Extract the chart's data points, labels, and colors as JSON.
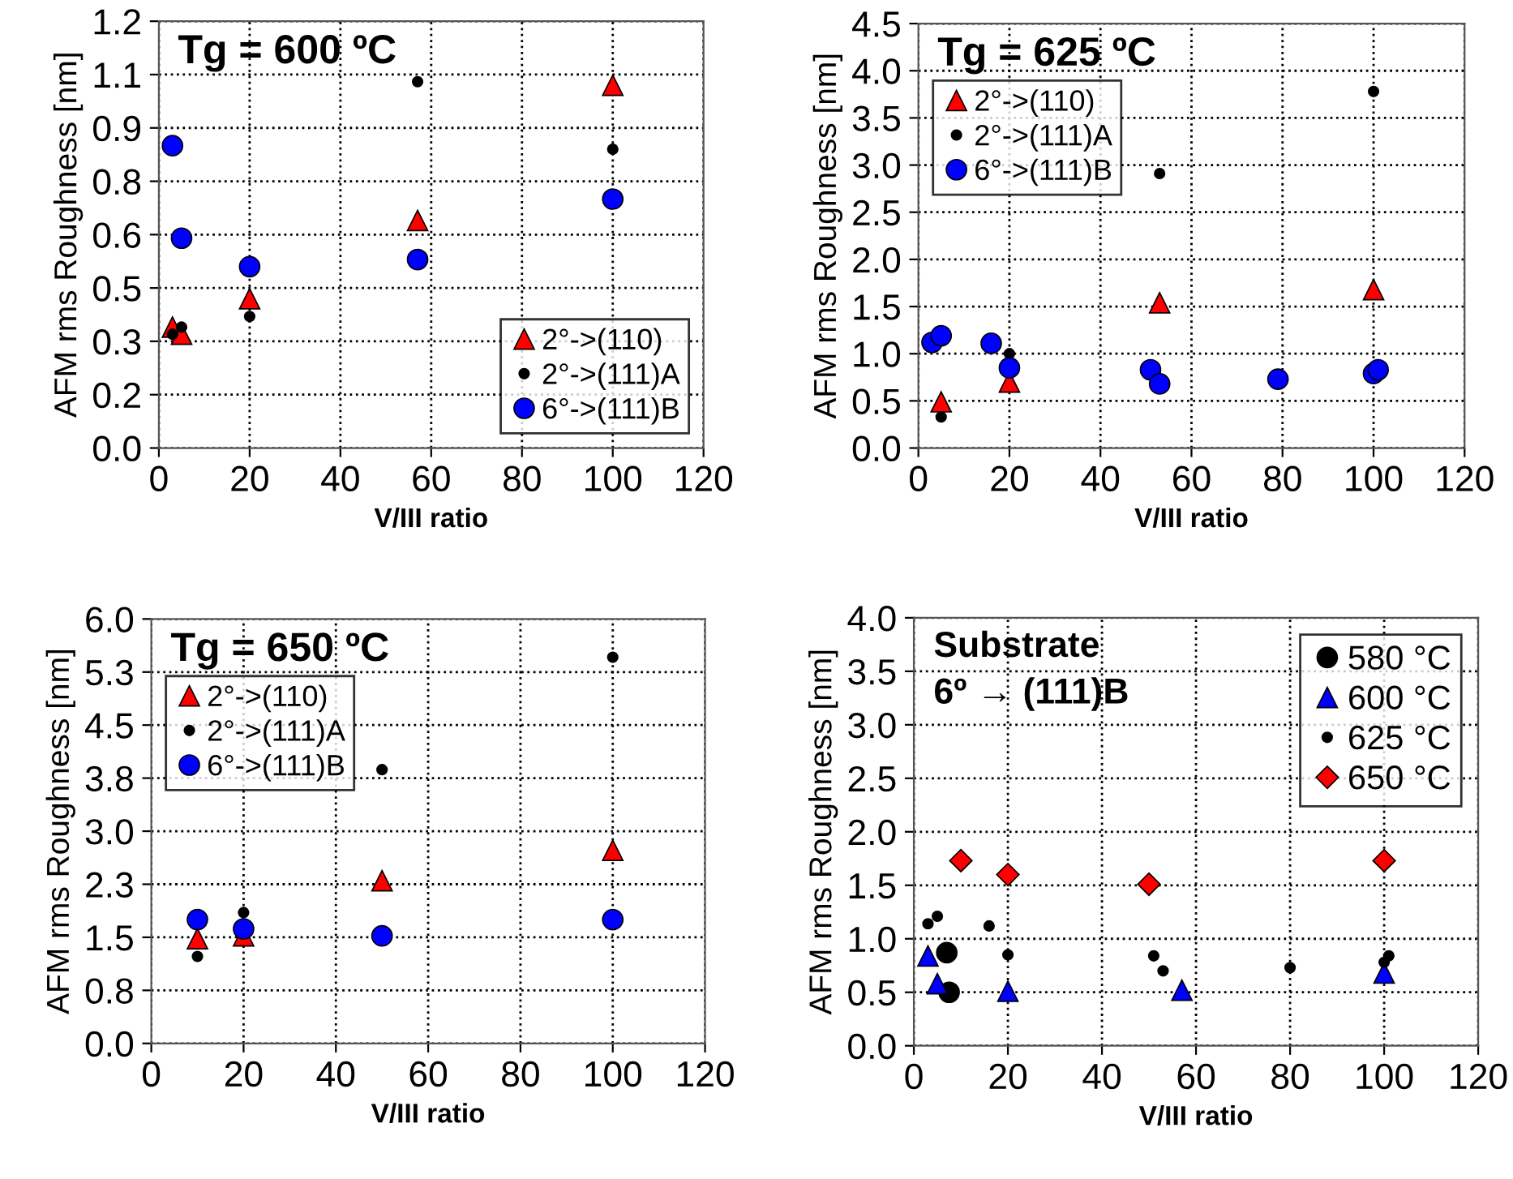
{
  "chart_data": [
    {
      "type": "scatter",
      "title": "Tg = 600 ºC",
      "xlabel": "V/III ratio",
      "ylabel": "AFM rms Roughness [nm]",
      "xlim": [
        0,
        120
      ],
      "xticks": [
        0,
        20,
        40,
        60,
        80,
        100,
        120
      ],
      "ylim": [
        0,
        1.2
      ],
      "yticks": [
        {
          "value": 0,
          "label": "0.0"
        },
        {
          "value": 0.15,
          "label": "0.2"
        },
        {
          "value": 0.3,
          "label": "0.3"
        },
        {
          "value": 0.45,
          "label": "0.5"
        },
        {
          "value": 0.6,
          "label": "0.6"
        },
        {
          "value": 0.75,
          "label": "0.8"
        },
        {
          "value": 0.9,
          "label": "0.9"
        },
        {
          "value": 1.05,
          "label": "1.1"
        },
        {
          "value": 1.2,
          "label": "1.2"
        }
      ],
      "grid": true,
      "legend": "bottom right",
      "series": [
        {
          "name": "2°->(110)",
          "color": "#ff0000",
          "marker": "triangle",
          "x": [
            3,
            5,
            20,
            57,
            100
          ],
          "values": [
            0.34,
            0.32,
            0.42,
            0.64,
            1.02
          ]
        },
        {
          "name": "2°->(111)A",
          "color": "#000000",
          "marker": "point",
          "x": [
            3,
            5,
            20,
            57,
            100
          ],
          "values": [
            0.32,
            0.34,
            0.37,
            1.03,
            0.84
          ]
        },
        {
          "name": "6°->(111)B",
          "color": "#0000ff",
          "marker": "circle",
          "x": [
            3,
            5,
            20,
            57,
            100
          ],
          "values": [
            0.85,
            0.59,
            0.51,
            0.53,
            0.7
          ]
        }
      ]
    },
    {
      "type": "scatter",
      "title": "Tg = 625 ºC",
      "xlabel": "V/III ratio",
      "ylabel": "AFM rms Roughness [nm]",
      "xlim": [
        0,
        120
      ],
      "xticks": [
        0,
        20,
        40,
        60,
        80,
        100,
        120
      ],
      "ylim": [
        0,
        4.5
      ],
      "yticks": [
        {
          "value": 0,
          "label": "0.0"
        },
        {
          "value": 0.5,
          "label": "0.5"
        },
        {
          "value": 1,
          "label": "1.0"
        },
        {
          "value": 1.5,
          "label": "1.5"
        },
        {
          "value": 2,
          "label": "2.0"
        },
        {
          "value": 2.5,
          "label": "2.5"
        },
        {
          "value": 3,
          "label": "3.0"
        },
        {
          "value": 3.5,
          "label": "3.5"
        },
        {
          "value": 4,
          "label": "4.0"
        },
        {
          "value": 4.5,
          "label": "4.5"
        }
      ],
      "grid": true,
      "legend": "top left",
      "series": [
        {
          "name": "2°->(110)",
          "color": "#ff0000",
          "marker": "triangle",
          "x": [
            5,
            20,
            53,
            100
          ],
          "values": [
            0.49,
            0.7,
            1.54,
            1.68
          ]
        },
        {
          "name": "2°->(111)A",
          "color": "#000000",
          "marker": "point",
          "x": [
            5,
            20,
            53,
            100
          ],
          "values": [
            0.33,
            1.0,
            2.91,
            3.78
          ]
        },
        {
          "name": "6°->(111)B",
          "color": "#0000ff",
          "marker": "circle",
          "x": [
            3,
            5,
            16,
            20,
            51,
            53,
            79,
            100,
            101
          ],
          "values": [
            1.12,
            1.19,
            1.11,
            0.85,
            0.83,
            0.68,
            0.73,
            0.79,
            0.83
          ]
        }
      ]
    },
    {
      "type": "scatter",
      "title": "Tg = 650 ºC",
      "xlabel": "V/III ratio",
      "ylabel": "AFM rms Roughness [nm]",
      "xlim": [
        0,
        120
      ],
      "xticks": [
        0,
        20,
        40,
        60,
        80,
        100,
        120
      ],
      "ylim": [
        0,
        6
      ],
      "yticks": [
        {
          "value": 0,
          "label": "0.0"
        },
        {
          "value": 0.75,
          "label": "0.8"
        },
        {
          "value": 1.5,
          "label": "1.5"
        },
        {
          "value": 2.25,
          "label": "2.3"
        },
        {
          "value": 3,
          "label": "3.0"
        },
        {
          "value": 3.75,
          "label": "3.8"
        },
        {
          "value": 4.5,
          "label": "4.5"
        },
        {
          "value": 5.25,
          "label": "5.3"
        },
        {
          "value": 6,
          "label": "6.0"
        }
      ],
      "grid": true,
      "legend": "top left",
      "series": [
        {
          "name": "2°->(110)",
          "color": "#ff0000",
          "marker": "triangle",
          "x": [
            10,
            20,
            50,
            100
          ],
          "values": [
            1.48,
            1.52,
            2.3,
            2.73
          ]
        },
        {
          "name": "2°->(111)A",
          "color": "#000000",
          "marker": "point",
          "x": [
            10,
            20,
            50,
            100
          ],
          "values": [
            1.23,
            1.85,
            3.87,
            5.46
          ]
        },
        {
          "name": "6°->(111)B",
          "color": "#0000ff",
          "marker": "circle",
          "x": [
            10,
            20,
            50,
            100
          ],
          "values": [
            1.75,
            1.62,
            1.52,
            1.75
          ]
        }
      ]
    },
    {
      "type": "scatter",
      "title": "Substrate\n6º → (111)B",
      "xlabel": "V/III ratio",
      "ylabel": "AFM rms Roughness [nm]",
      "xlim": [
        0,
        120
      ],
      "xticks": [
        0,
        20,
        40,
        60,
        80,
        100,
        120
      ],
      "ylim": [
        0,
        4
      ],
      "yticks": [
        {
          "value": 0,
          "label": "0.0"
        },
        {
          "value": 0.5,
          "label": "0.5"
        },
        {
          "value": 1,
          "label": "1.0"
        },
        {
          "value": 1.5,
          "label": "1.5"
        },
        {
          "value": 2,
          "label": "2.0"
        },
        {
          "value": 2.5,
          "label": "2.5"
        },
        {
          "value": 3,
          "label": "3.0"
        },
        {
          "value": 3.5,
          "label": "3.5"
        },
        {
          "value": 4,
          "label": "4.0"
        }
      ],
      "grid": true,
      "legend": "top right",
      "series": [
        {
          "name": "580 °C",
          "color": "#000000",
          "marker": "circle",
          "x": [
            7,
            7.5
          ],
          "values": [
            0.87,
            0.5
          ]
        },
        {
          "name": "600 °C",
          "color": "#0000ff",
          "marker": "triangle",
          "x": [
            3,
            5,
            20,
            57,
            100
          ],
          "values": [
            0.84,
            0.58,
            0.51,
            0.52,
            0.68
          ]
        },
        {
          "name": "625 °C",
          "color": "#000000",
          "marker": "point",
          "x": [
            3,
            5,
            16,
            20,
            51,
            53,
            80,
            100,
            101
          ],
          "values": [
            1.14,
            1.21,
            1.12,
            0.85,
            0.84,
            0.7,
            0.73,
            0.78,
            0.84
          ]
        },
        {
          "name": "650 °C",
          "color": "#ff0000",
          "marker": "diamond",
          "x": [
            10,
            20,
            50,
            100
          ],
          "values": [
            1.73,
            1.6,
            1.51,
            1.73
          ]
        }
      ]
    }
  ]
}
